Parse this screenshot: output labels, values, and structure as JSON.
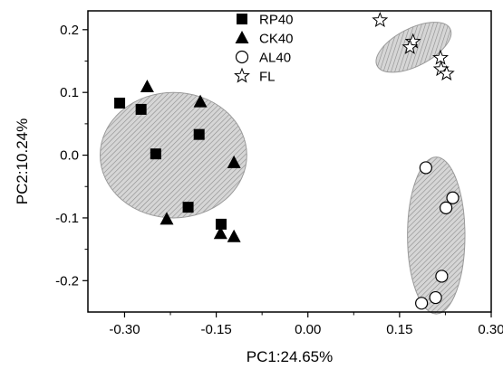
{
  "chart_data": {
    "type": "scatter",
    "title": "",
    "xlabel": "PC1:24.65%",
    "ylabel": "PC2:10.24%",
    "xlim": [
      -0.36,
      0.3
    ],
    "ylim": [
      -0.25,
      0.23
    ],
    "xticks": [
      -0.3,
      -0.15,
      0.0,
      0.15,
      0.3
    ],
    "xtick_labels": [
      "-0.30",
      "-0.15",
      "0.00",
      "0.15",
      "0.30"
    ],
    "yticks": [
      -0.2,
      -0.1,
      0.0,
      0.1,
      0.2
    ],
    "ytick_labels": [
      "-0.2",
      "-0.1",
      "0.0",
      "0.1",
      "0.2"
    ],
    "grid": false,
    "legend_position": "top-center",
    "series": [
      {
        "name": "RP40",
        "marker": "square-filled",
        "color": "#000000",
        "x": [
          -0.308,
          -0.273,
          -0.249,
          -0.178,
          -0.196,
          -0.142
        ],
        "y": [
          0.083,
          0.073,
          0.002,
          0.033,
          -0.083,
          -0.11
        ]
      },
      {
        "name": "CK40",
        "marker": "triangle-filled",
        "color": "#000000",
        "x": [
          -0.263,
          -0.231,
          -0.176,
          -0.121,
          -0.143,
          -0.121
        ],
        "y": [
          0.109,
          -0.102,
          0.085,
          -0.012,
          -0.125,
          -0.13
        ]
      },
      {
        "name": "AL40",
        "marker": "circle-open",
        "color": "#000000",
        "x": [
          0.193,
          0.237,
          0.226,
          0.219,
          0.209,
          0.186
        ],
        "y": [
          -0.02,
          -0.068,
          -0.084,
          -0.193,
          -0.227,
          -0.236
        ]
      },
      {
        "name": "FL",
        "marker": "star-open",
        "color": "#000000",
        "x": [
          0.118,
          0.172,
          0.167,
          0.217,
          0.218,
          0.227
        ],
        "y": [
          0.215,
          0.181,
          0.172,
          0.155,
          0.137,
          0.13
        ]
      }
    ],
    "clusters": [
      {
        "cx": -0.22,
        "cy": 0.0,
        "rx": 0.12,
        "ry": 0.1,
        "rotate_deg": 0
      },
      {
        "cx": 0.21,
        "cy": -0.128,
        "rx": 0.047,
        "ry": 0.125,
        "rotate_deg": 0
      },
      {
        "cx": 0.173,
        "cy": 0.172,
        "rx": 0.067,
        "ry": 0.03,
        "rotate_deg": 27
      }
    ],
    "colors": {
      "axis": "#000000",
      "cluster_fill": "#d4d4d4",
      "cluster_hatch": "#8c8c8c",
      "cluster_edge": "#9a9a9a"
    }
  }
}
